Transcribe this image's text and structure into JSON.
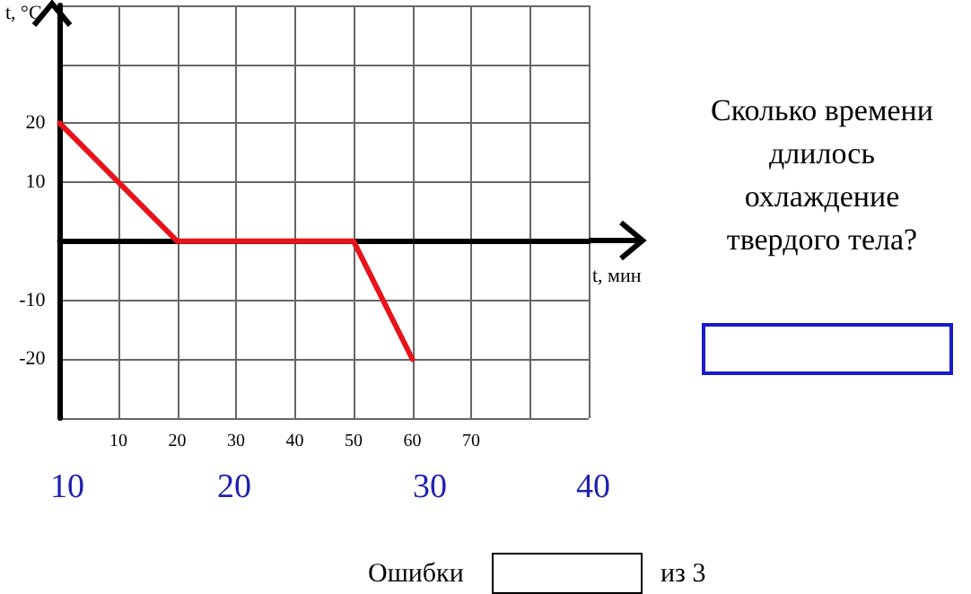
{
  "chart_data": {
    "type": "line",
    "xlabel": "t, мин",
    "ylabel": "t, °C",
    "x": [
      0,
      20,
      50,
      60
    ],
    "series": [
      {
        "color": "#e8141c",
        "values": [
          20,
          0,
          0,
          -20
        ]
      }
    ],
    "xlim": [
      0,
      90
    ],
    "xticks": [
      {
        "value": 0,
        "label": null
      },
      10,
      20,
      30,
      40,
      50,
      60,
      70,
      {
        "value": 80,
        "label": null
      },
      {
        "value": 90,
        "label": null
      }
    ],
    "ylim": [
      -30,
      40
    ],
    "yticks": [
      {
        "value": -30,
        "label": null
      },
      -20,
      -10,
      {
        "value": 0,
        "label": null
      },
      10,
      20,
      {
        "value": 30,
        "label": null
      },
      {
        "value": 40,
        "label": null
      }
    ],
    "grid": true,
    "marker": "none",
    "line_style": "solid",
    "annotations": [
      "Сколько времени длилось охлаждение твердого тела?",
      "10",
      "20",
      "30",
      "40",
      "Ошибки",
      "из 3"
    ]
  }
}
